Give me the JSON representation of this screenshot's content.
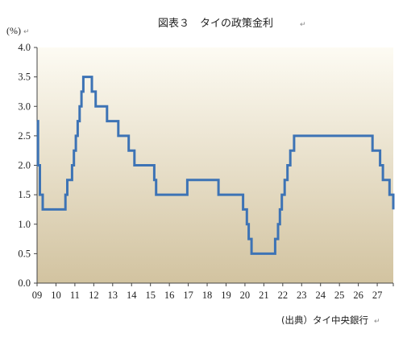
{
  "chart_data": {
    "type": "line",
    "title": "図表３　タイの政策金利",
    "ylabel": "(%)",
    "source": "(出典）タイ中央銀行",
    "ylim": [
      0,
      4.0
    ],
    "y_ticks": [
      "0.0",
      "0.5",
      "1.0",
      "1.5",
      "2.0",
      "2.5",
      "3.0",
      "3.5",
      "4.0"
    ],
    "x_ticks": [
      "09",
      "10",
      "11",
      "12",
      "13",
      "14",
      "15",
      "16",
      "17",
      "18",
      "19",
      "20",
      "21",
      "22",
      "23",
      "24",
      "25",
      "26",
      "27"
    ],
    "xlim": [
      9,
      27.85
    ],
    "grid": false,
    "series": [
      {
        "step": true,
        "x": [
          9.0,
          9.05,
          9.15,
          9.3,
          10.5,
          10.6,
          10.85,
          10.95,
          11.05,
          11.15,
          11.25,
          11.35,
          11.45,
          11.55,
          11.65,
          11.9,
          12.1,
          12.7,
          13.3,
          13.85,
          14.15,
          15.2,
          15.3,
          16.95,
          18.6,
          19.9,
          20.1,
          20.2,
          20.35,
          21.6,
          21.75,
          21.85,
          21.95,
          22.1,
          22.25,
          22.4,
          22.6,
          22.75,
          26.75,
          27.15,
          27.3,
          27.65,
          27.85
        ],
        "y": [
          2.75,
          2.0,
          1.5,
          1.25,
          1.5,
          1.75,
          2.0,
          2.25,
          2.5,
          2.75,
          3.0,
          3.25,
          3.5,
          3.5,
          3.5,
          3.25,
          3.0,
          2.75,
          2.5,
          2.25,
          2.0,
          1.75,
          1.5,
          1.75,
          1.5,
          1.25,
          1.0,
          0.75,
          0.5,
          0.75,
          1.0,
          1.25,
          1.5,
          1.75,
          2.0,
          2.25,
          2.5,
          2.5,
          2.25,
          2.0,
          1.75,
          1.5,
          1.25
        ]
      }
    ],
    "colors": {
      "line": "#3d73b5",
      "bg_top": "#fdfbf3",
      "bg_bottom": "#d2c3a0",
      "axis": "#444444"
    }
  }
}
